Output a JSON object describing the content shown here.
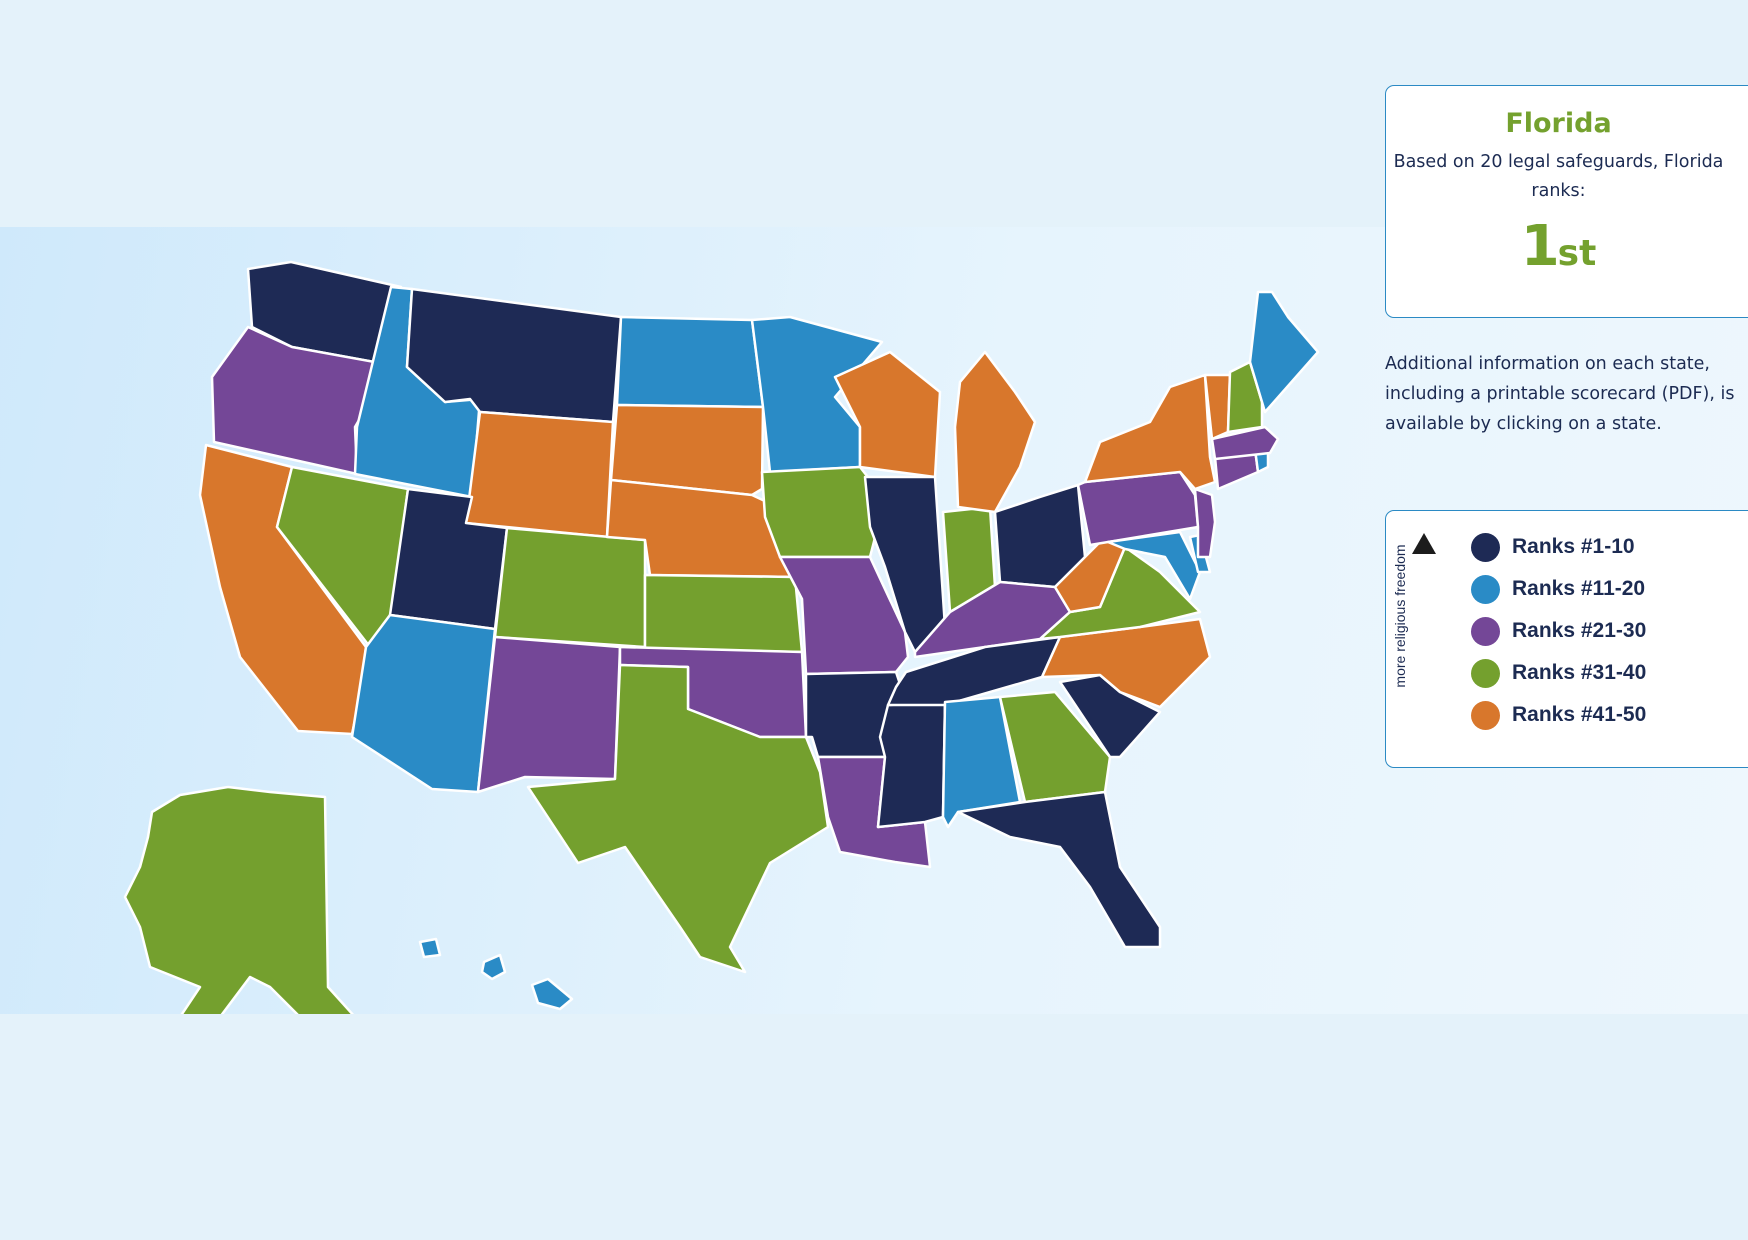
{
  "info_card": {
    "state": "Florida",
    "description": "Based on 20 legal safeguards, Florida ranks:",
    "rank_number": "1",
    "rank_suffix": "st"
  },
  "additional_info": [
    "Additional information on each state,",
    "including a printable scorecard (PDF), is",
    "available by clicking on a state."
  ],
  "legend": {
    "axis_label": "more religious freedom",
    "items": [
      {
        "label": "Ranks #1-10",
        "color": "#1e2a55"
      },
      {
        "label": "Ranks #11-20",
        "color": "#2a8bc6"
      },
      {
        "label": "Ranks #21-30",
        "color": "#744797"
      },
      {
        "label": "Ranks #31-40",
        "color": "#74a02e"
      },
      {
        "label": "Ranks #41-50",
        "color": "#d8772c"
      }
    ]
  },
  "tier_colors": {
    "t1": "#1e2a55",
    "t2": "#2a8bc6",
    "t3": "#744797",
    "t4": "#74a02e",
    "t5": "#d8772c"
  },
  "state_tiers": {
    "WA": 1,
    "MT": 1,
    "UT": 1,
    "AR": 1,
    "IL": 1,
    "TN": 1,
    "MS": 1,
    "OH": 1,
    "SC": 1,
    "FL": 1,
    "ID": 2,
    "ND": 2,
    "MN": 2,
    "AZ": 2,
    "AL": 2,
    "ME": 2,
    "MD": 2,
    "RI": 2,
    "DE": 2,
    "HI": 2,
    "OR": 3,
    "NM": 3,
    "OK": 3,
    "MO": 3,
    "LA": 3,
    "KY": 3,
    "PA": 3,
    "NJ": 3,
    "MA": 3,
    "CT": 3,
    "NV": 4,
    "CO": 4,
    "KS": 4,
    "IA": 4,
    "TX": 4,
    "IN": 4,
    "GA": 4,
    "VA": 4,
    "NH": 4,
    "AK": 4,
    "CA": 5,
    "WY": 5,
    "SD": 5,
    "NE": 5,
    "WI": 5,
    "MI": 5,
    "NY": 5,
    "VT": 5,
    "WV": 5,
    "NC": 5
  }
}
